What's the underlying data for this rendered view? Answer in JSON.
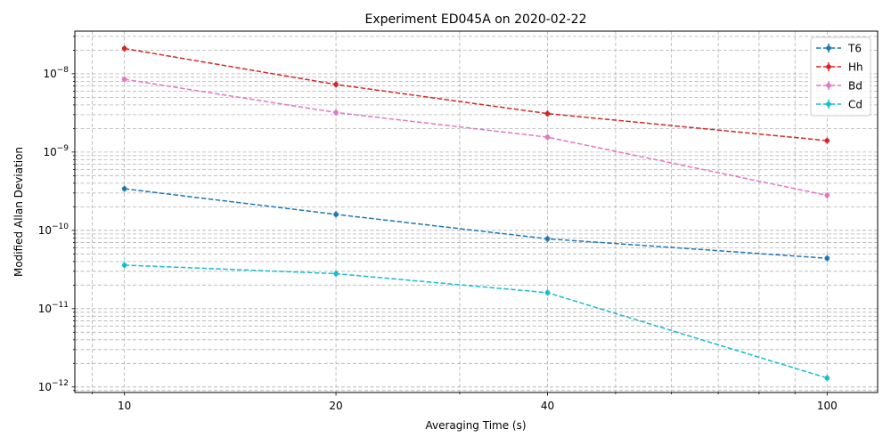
{
  "chart_data": {
    "type": "line",
    "title": "Experiment ED045A on 2020-02-22",
    "xlabel": "Averaging Time (s)",
    "ylabel": "Modified Allan Deviation",
    "xscale": "log",
    "yscale": "log",
    "xlim": [
      8.5,
      118
    ],
    "ylim": [
      8.5e-13,
      3.5e-08
    ],
    "x": [
      10,
      20,
      40,
      100
    ],
    "x_tick_labels": [
      "10",
      "20",
      "40",
      "100"
    ],
    "y_ticks": [
      1e-12,
      1e-11,
      1e-10,
      1e-09,
      1e-08
    ],
    "y_tick_exponents": [
      "−12",
      "−11",
      "−10",
      "−9",
      "−8"
    ],
    "grid": true,
    "legend": "top-right",
    "series": [
      {
        "name": "T6",
        "color": "#1f77b4",
        "values": [
          3.4e-10,
          1.6e-10,
          7.8e-11,
          4.4e-11
        ]
      },
      {
        "name": "Hh",
        "color": "#d62728",
        "values": [
          2.1e-08,
          7.3e-09,
          3.1e-09,
          1.4e-09
        ]
      },
      {
        "name": "Bd",
        "color": "#e377c2",
        "values": [
          8.5e-09,
          3.2e-09,
          1.55e-09,
          2.8e-10
        ]
      },
      {
        "name": "Cd",
        "color": "#17becf",
        "values": [
          3.6e-11,
          2.8e-11,
          1.6e-11,
          1.3e-12
        ]
      }
    ]
  }
}
